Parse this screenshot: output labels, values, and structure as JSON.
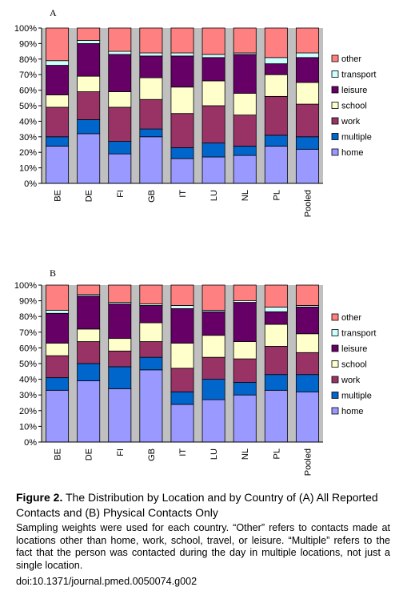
{
  "chart_data": [
    {
      "type": "bar",
      "stacked": "percent",
      "panel_label": "A",
      "categories": [
        "BE",
        "DE",
        "FI",
        "GB",
        "IT",
        "LU",
        "NL",
        "PL",
        "Pooled"
      ],
      "ylim": [
        0,
        100
      ],
      "yticks": [
        "0%",
        "10%",
        "20%",
        "30%",
        "40%",
        "50%",
        "60%",
        "70%",
        "80%",
        "90%",
        "100%"
      ],
      "legend": "right",
      "series": [
        {
          "name": "home",
          "color": "#9999ff",
          "values": [
            24,
            32,
            19,
            30,
            16,
            17,
            18,
            24,
            22
          ]
        },
        {
          "name": "multiple",
          "color": "#0066cc",
          "values": [
            6,
            9,
            8,
            5,
            7,
            9,
            6,
            7,
            8
          ]
        },
        {
          "name": "work",
          "color": "#993366",
          "values": [
            19,
            18,
            22,
            19,
            22,
            24,
            20,
            25,
            21
          ]
        },
        {
          "name": "school",
          "color": "#ffffcc",
          "values": [
            8,
            10,
            10,
            14,
            17,
            16,
            14,
            14,
            14
          ]
        },
        {
          "name": "leisure",
          "color": "#660066",
          "values": [
            19,
            21,
            24,
            14,
            20,
            15,
            25,
            7,
            16
          ]
        },
        {
          "name": "transport",
          "color": "#ccffff",
          "values": [
            3,
            2,
            2,
            2,
            2,
            2,
            1,
            4,
            3
          ]
        },
        {
          "name": "other",
          "color": "#ff8080",
          "values": [
            21,
            8,
            15,
            16,
            16,
            17,
            16,
            19,
            16
          ]
        }
      ]
    },
    {
      "type": "bar",
      "stacked": "percent",
      "panel_label": "B",
      "categories": [
        "BE",
        "DE",
        "FI",
        "GB",
        "IT",
        "LU",
        "NL",
        "PL",
        "Pooled"
      ],
      "ylim": [
        0,
        100
      ],
      "yticks": [
        "0%",
        "10%",
        "20%",
        "30%",
        "40%",
        "50%",
        "60%",
        "70%",
        "80%",
        "90%",
        "100%"
      ],
      "legend": "right",
      "series": [
        {
          "name": "home",
          "color": "#9999ff",
          "values": [
            33,
            39,
            34,
            46,
            24,
            27,
            30,
            33,
            32
          ]
        },
        {
          "name": "multiple",
          "color": "#0066cc",
          "values": [
            8,
            11,
            14,
            8,
            8,
            13,
            8,
            10,
            11
          ]
        },
        {
          "name": "work",
          "color": "#993366",
          "values": [
            14,
            14,
            10,
            10,
            15,
            14,
            15,
            18,
            14
          ]
        },
        {
          "name": "school",
          "color": "#ffffcc",
          "values": [
            8,
            8,
            8,
            12,
            16,
            14,
            11,
            14,
            12
          ]
        },
        {
          "name": "leisure",
          "color": "#660066",
          "values": [
            19,
            21,
            22,
            11,
            22,
            15,
            25,
            8,
            17
          ]
        },
        {
          "name": "transport",
          "color": "#ccffff",
          "values": [
            2,
            1,
            1,
            1,
            2,
            1,
            1,
            3,
            1
          ]
        },
        {
          "name": "other",
          "color": "#ff8080",
          "values": [
            16,
            6,
            11,
            12,
            13,
            16,
            10,
            14,
            13
          ]
        }
      ]
    }
  ],
  "caption": {
    "figure_label": "Figure 2.",
    "title": "The Distribution by Location and by Country of (A) All Reported Contacts and (B) Physical Contacts Only",
    "body": "Sampling weights were used for each country. “Other” refers to contacts made at locations other than home, work, school, travel, or leisure. “Multiple” refers to the fact that the person was contacted during the day in multiple locations, not just a single location.",
    "doi": "doi:10.1371/journal.pmed.0050074.g002"
  }
}
